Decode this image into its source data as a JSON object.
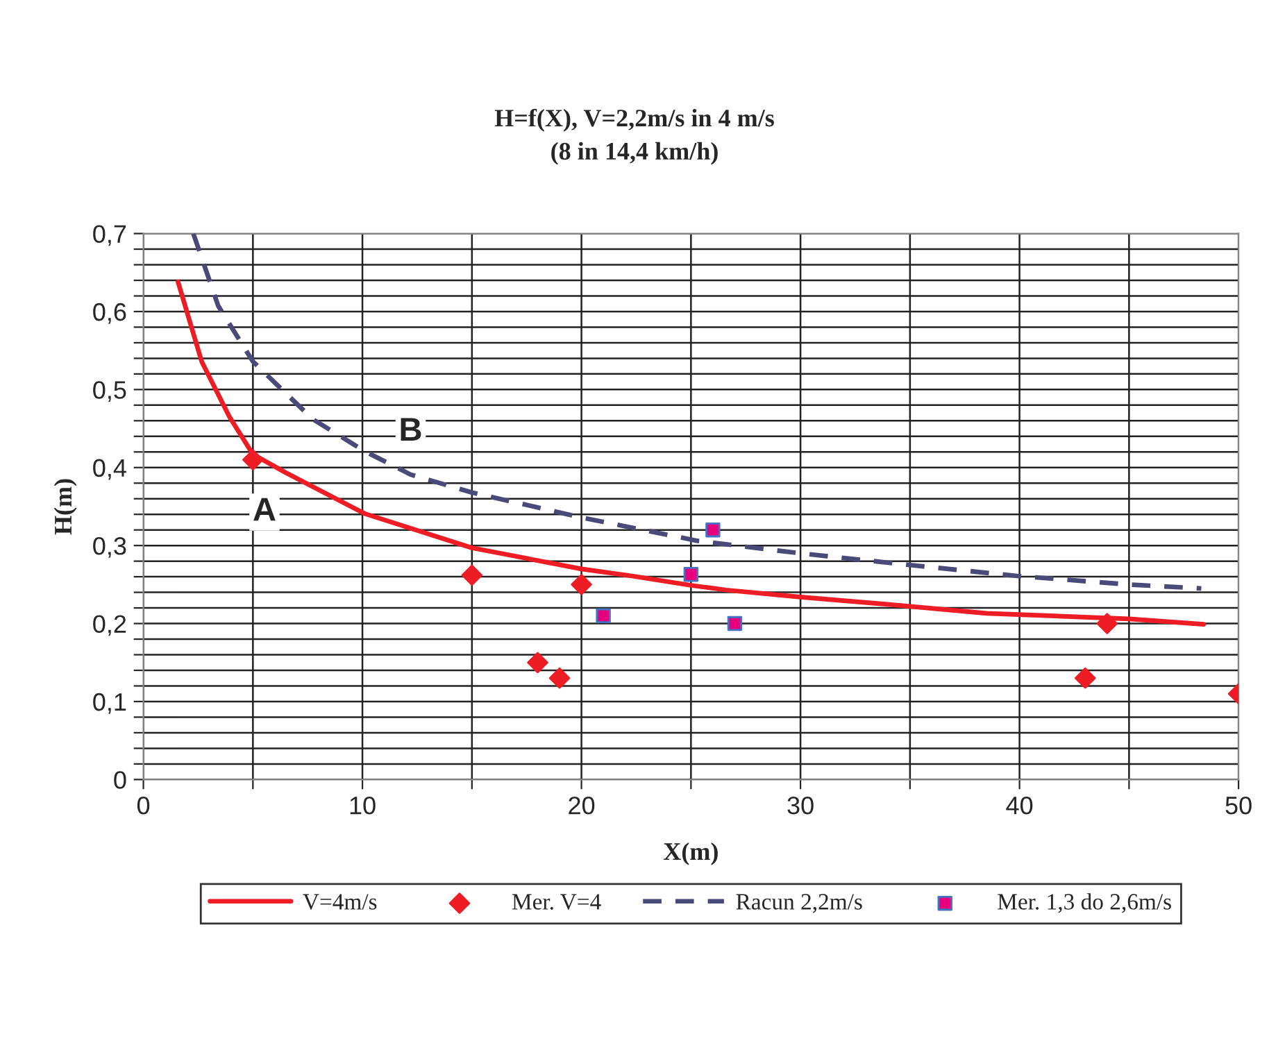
{
  "chart_data": {
    "type": "line",
    "title": "H=f(X), V=2,2m/s in 4 m/s\n(8 in 14,4 km/h)",
    "xlabel": "X(m)",
    "ylabel": "H(m)",
    "xlim": [
      0,
      50
    ],
    "ylim": [
      0,
      0.7
    ],
    "xticks": [
      0,
      {
        "value": 5,
        "label": null
      },
      10,
      {
        "value": 15,
        "label": null
      },
      20,
      {
        "value": 25,
        "label": null
      },
      30,
      {
        "value": 35,
        "label": null
      },
      40,
      {
        "value": 45,
        "label": null
      },
      50
    ],
    "yticks": [
      {
        "value": 0,
        "label": "0"
      },
      {
        "value": 0.02,
        "label": null
      },
      {
        "value": 0.04,
        "label": null
      },
      {
        "value": 0.06,
        "label": null
      },
      {
        "value": 0.08,
        "label": null
      },
      {
        "value": 0.1,
        "label": "0,1"
      },
      {
        "value": 0.12,
        "label": null
      },
      {
        "value": 0.14,
        "label": null
      },
      {
        "value": 0.16,
        "label": null
      },
      {
        "value": 0.18,
        "label": null
      },
      {
        "value": 0.2,
        "label": "0,2"
      },
      {
        "value": 0.22,
        "label": null
      },
      {
        "value": 0.24,
        "label": null
      },
      {
        "value": 0.26,
        "label": null
      },
      {
        "value": 0.28,
        "label": null
      },
      {
        "value": 0.3,
        "label": "0,3"
      },
      {
        "value": 0.32,
        "label": null
      },
      {
        "value": 0.34,
        "label": null
      },
      {
        "value": 0.36,
        "label": null
      },
      {
        "value": 0.38,
        "label": null
      },
      {
        "value": 0.4,
        "label": "0,4"
      },
      {
        "value": 0.42,
        "label": null
      },
      {
        "value": 0.44,
        "label": null
      },
      {
        "value": 0.46,
        "label": null
      },
      {
        "value": 0.48,
        "label": null
      },
      {
        "value": 0.5,
        "label": "0,5"
      },
      {
        "value": 0.52,
        "label": null
      },
      {
        "value": 0.54,
        "label": null
      },
      {
        "value": 0.56,
        "label": null
      },
      {
        "value": 0.58,
        "label": null
      },
      {
        "value": 0.6,
        "label": "0,6"
      },
      {
        "value": 0.62,
        "label": null
      },
      {
        "value": 0.64,
        "label": null
      },
      {
        "value": 0.66,
        "label": null
      },
      {
        "value": 0.68,
        "label": null
      },
      {
        "value": 0.7,
        "label": "0,7"
      }
    ],
    "grid": true,
    "legend": "bottom",
    "series": [
      {
        "name": "V=4m/s",
        "color": "#ee1c25",
        "line_style": "solid",
        "marker": "none",
        "x": [
          1.58,
          2.66,
          3.93,
          5.0,
          6.46,
          10.1,
          15.0,
          20.0,
          22.3,
          25.0,
          26.6,
          30.0,
          33.4,
          38.5,
          45.0,
          48.4
        ],
        "values": [
          0.638,
          0.536,
          0.465,
          0.417,
          0.394,
          0.341,
          0.297,
          0.27,
          0.261,
          0.249,
          0.243,
          0.234,
          0.226,
          0.213,
          0.206,
          0.199
        ]
      },
      {
        "name": "Mer. V=4",
        "type": "scatter",
        "color": "#ee1c25",
        "marker": "diamond",
        "x": [
          5,
          15,
          18,
          19,
          20,
          43,
          44,
          50
        ],
        "values": [
          0.41,
          0.262,
          0.15,
          0.13,
          0.25,
          0.13,
          0.2,
          0.11
        ]
      },
      {
        "name": "Racun 2,2m/s",
        "color": "#4a4a7a",
        "line_style": "dashed",
        "marker": "none",
        "x": [
          2.28,
          3.42,
          5.0,
          7.73,
          10.1,
          12.2,
          15.0,
          20.0,
          25.3,
          30.0,
          35.0,
          39.9,
          45.0,
          48.3
        ],
        "values": [
          0.7,
          0.607,
          0.536,
          0.462,
          0.421,
          0.391,
          0.368,
          0.336,
          0.306,
          0.29,
          0.275,
          0.261,
          0.25,
          0.245
        ]
      },
      {
        "name": "Mer. 1,3 do 2,6m/s",
        "type": "scatter",
        "color": "#e6007e",
        "marker": "square",
        "x": [
          21,
          25,
          26,
          27
        ],
        "values": [
          0.21,
          0.263,
          0.32,
          0.2
        ]
      }
    ],
    "annotations": [
      {
        "text": "A",
        "x": 5.0,
        "y": 0.417
      },
      {
        "text": "B",
        "x": 12.2,
        "y": 0.391
      }
    ]
  }
}
